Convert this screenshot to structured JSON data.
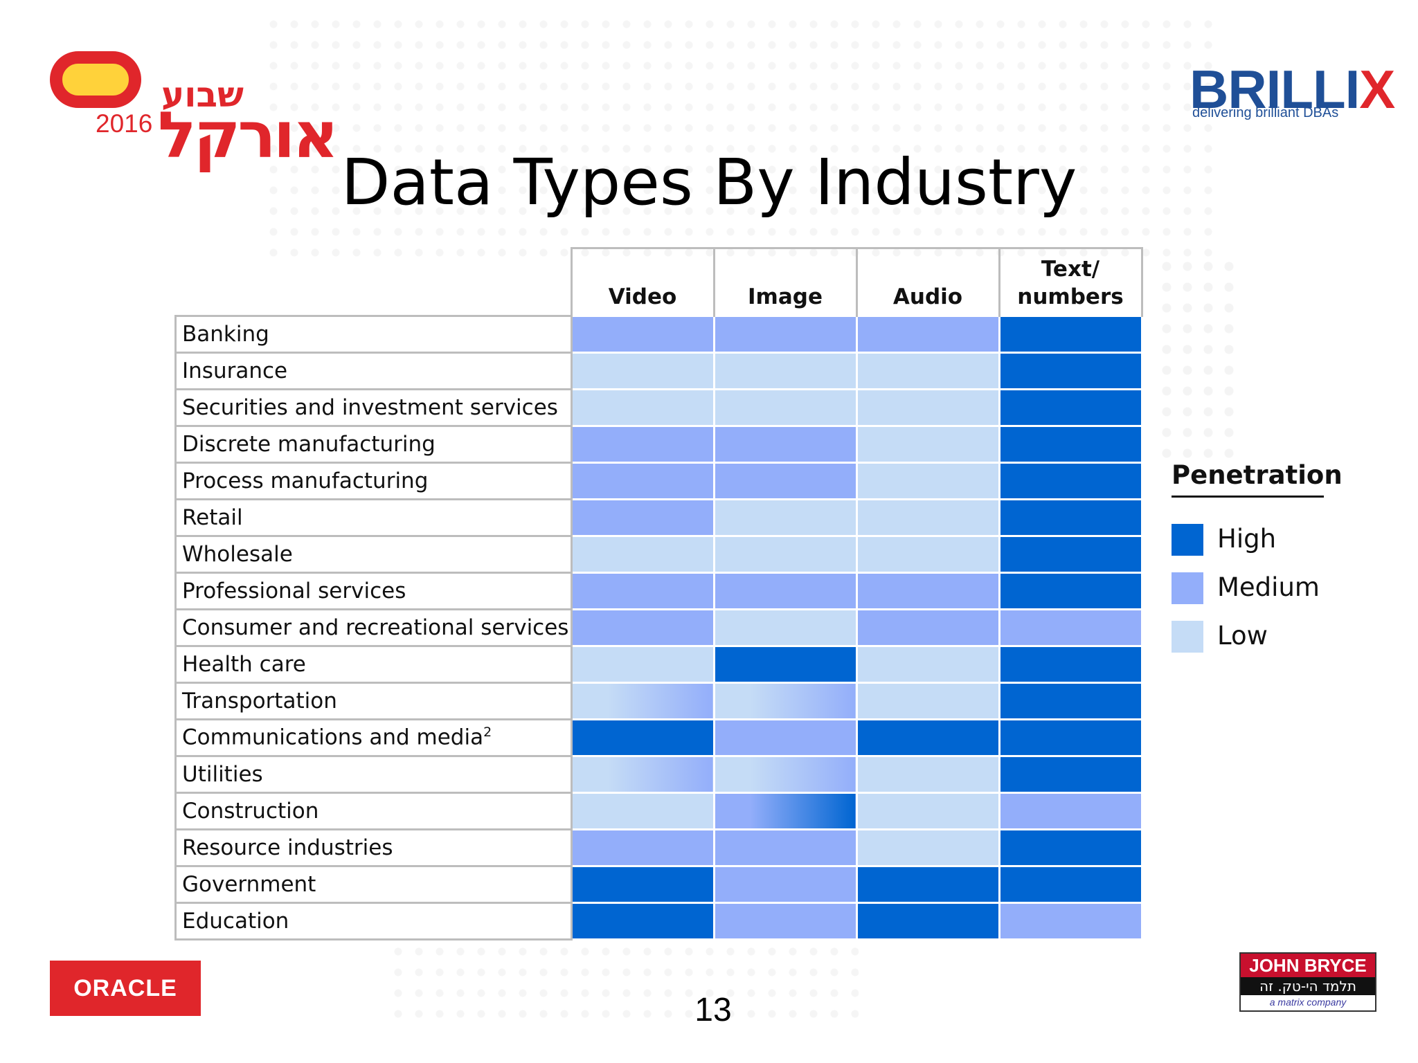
{
  "logos": {
    "conference_hebrew_top": "שבוע",
    "conference_hebrew_main": "אורקל",
    "conference_year": "2016",
    "brillix_name_main": "BRILLI",
    "brillix_name_x": "X",
    "brillix_tagline": "delivering brilliant DBAs",
    "oracle": "ORACLE",
    "john_bryce_name": "JOHN BRYCE",
    "john_bryce_hebrew": "תלמד הי-טק. זה עובד!",
    "john_bryce_tagline": "a matrix company"
  },
  "colors": {
    "High": "#0065d1",
    "Medium": "#93aefa",
    "Low": "#c5dcf6",
    "brand_red": "#e0262b",
    "brand_blue": "#1f4f97"
  },
  "page_number": "13",
  "chart_data": {
    "type": "heatmap",
    "title": "Data Types By Industry",
    "columns": [
      "Video",
      "Image",
      "Audio",
      "Text/ numbers"
    ],
    "rows": [
      {
        "label": "Banking",
        "sup": "",
        "values": [
          "Medium",
          "Medium",
          "Medium",
          "High"
        ]
      },
      {
        "label": "Insurance",
        "sup": "",
        "values": [
          "Low",
          "Low",
          "Low",
          "High"
        ]
      },
      {
        "label": "Securities and investment services",
        "sup": "",
        "values": [
          "Low",
          "Low",
          "Low",
          "High"
        ]
      },
      {
        "label": "Discrete manufacturing",
        "sup": "",
        "values": [
          "Medium",
          "Medium",
          "Low",
          "High"
        ]
      },
      {
        "label": "Process manufacturing",
        "sup": "",
        "values": [
          "Medium",
          "Medium",
          "Low",
          "High"
        ]
      },
      {
        "label": "Retail",
        "sup": "",
        "values": [
          "Medium",
          "Low",
          "Low",
          "High"
        ]
      },
      {
        "label": "Wholesale",
        "sup": "",
        "values": [
          "Low",
          "Low",
          "Low",
          "High"
        ]
      },
      {
        "label": "Professional services",
        "sup": "",
        "values": [
          "Medium",
          "Medium",
          "Medium",
          "High"
        ]
      },
      {
        "label": "Consumer and recreational services",
        "sup": "",
        "values": [
          "Medium",
          "Low",
          "Medium",
          "Medium"
        ]
      },
      {
        "label": "Health care",
        "sup": "",
        "values": [
          "Low",
          "High",
          "Low",
          "High"
        ]
      },
      {
        "label": "Transportation",
        "sup": "",
        "values": [
          "Low-Medium",
          "Low-Medium",
          "Low",
          "High"
        ]
      },
      {
        "label": "Communications and media",
        "sup": "2",
        "values": [
          "High",
          "Medium",
          "High",
          "High"
        ]
      },
      {
        "label": "Utilities",
        "sup": "",
        "values": [
          "Low-Medium",
          "Low-Medium",
          "Low",
          "High"
        ]
      },
      {
        "label": "Construction",
        "sup": "",
        "values": [
          "Low",
          "Medium-High",
          "Low",
          "Medium"
        ]
      },
      {
        "label": "Resource industries",
        "sup": "",
        "values": [
          "Medium",
          "Medium",
          "Low",
          "High"
        ]
      },
      {
        "label": "Government",
        "sup": "",
        "values": [
          "High",
          "Medium",
          "High",
          "High"
        ]
      },
      {
        "label": "Education",
        "sup": "",
        "values": [
          "High",
          "Medium",
          "High",
          "Medium"
        ]
      }
    ],
    "legend": {
      "title": "Penetration",
      "placement": "right",
      "items": [
        "High",
        "Medium",
        "Low"
      ]
    }
  }
}
